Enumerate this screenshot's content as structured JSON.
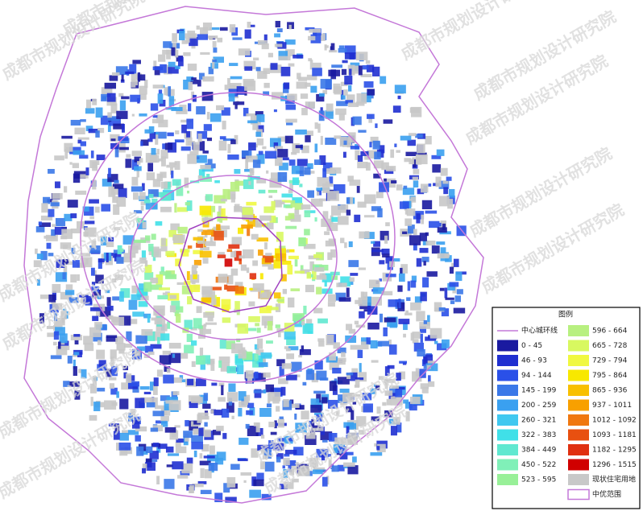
{
  "watermark": "成都市规划设计研究院",
  "legend": {
    "title": "图例",
    "ring_line": {
      "label": "中心城环线",
      "color": "#c478d8"
    },
    "classes": [
      {
        "label": "0 - 45",
        "color": "#1a1aa0"
      },
      {
        "label": "46 - 93",
        "color": "#1f2fd0"
      },
      {
        "label": "94 - 144",
        "color": "#2a50e8"
      },
      {
        "label": "145 - 199",
        "color": "#3a78e8"
      },
      {
        "label": "200 - 259",
        "color": "#3aa0f0"
      },
      {
        "label": "260 - 321",
        "color": "#40c8f0"
      },
      {
        "label": "322 - 383",
        "color": "#40e0e8"
      },
      {
        "label": "384 - 449",
        "color": "#60e8d0"
      },
      {
        "label": "450 - 522",
        "color": "#80f0b8"
      },
      {
        "label": "523 - 595",
        "color": "#98f098"
      },
      {
        "label": "596 - 664",
        "color": "#b8f080"
      },
      {
        "label": "665 - 728",
        "color": "#d8f860"
      },
      {
        "label": "729 - 794",
        "color": "#f0f840"
      },
      {
        "label": "795 - 864",
        "color": "#f8e800"
      },
      {
        "label": "865 - 936",
        "color": "#f8c000"
      },
      {
        "label": "937 - 1011",
        "color": "#f8a000"
      },
      {
        "label": "1012 - 1092",
        "color": "#f07810"
      },
      {
        "label": "1093 - 1181",
        "color": "#e85010"
      },
      {
        "label": "1182 - 1295",
        "color": "#e03010"
      },
      {
        "label": "1296 - 1515",
        "color": "#d00000"
      }
    ],
    "existing": {
      "label": "现状住宅用地",
      "color": "#c8c8c8"
    },
    "boundary": {
      "label": "中优范围",
      "color": "#c478d8"
    }
  }
}
